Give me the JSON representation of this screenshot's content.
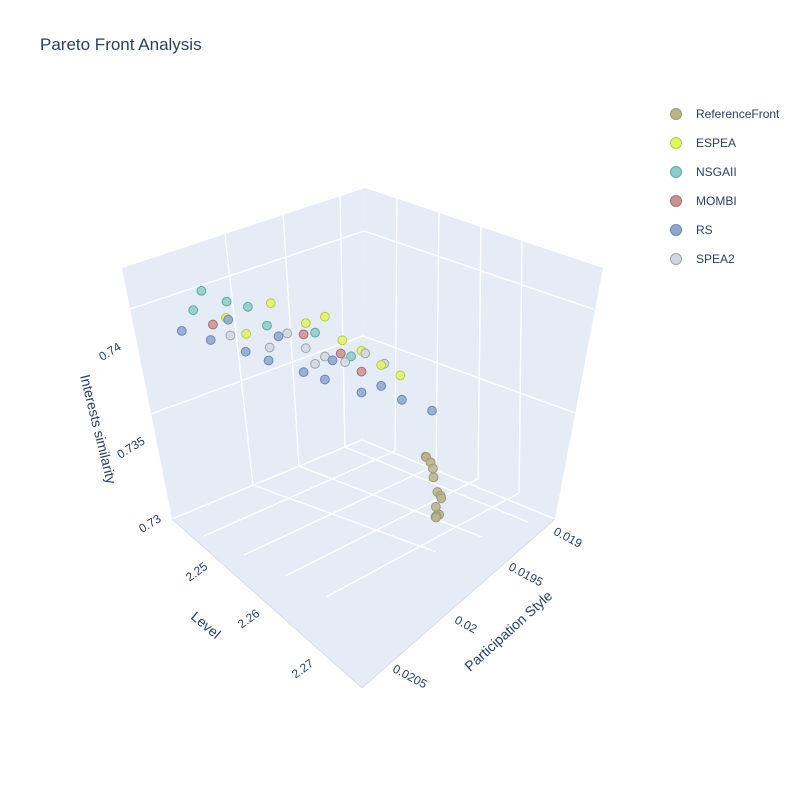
{
  "chart_data": {
    "type": "scatter",
    "subtype": "3d-scatter",
    "title": "Pareto Front Analysis",
    "axes": {
      "x": {
        "label": "Participation Style",
        "range": [
          0.02055,
          0.01895
        ],
        "ticks": [
          "0.019",
          "0.0195",
          "0.02",
          "0.0205"
        ]
      },
      "y": {
        "label": "Level",
        "range": [
          2.24,
          2.275
        ],
        "ticks": [
          "2.25",
          "2.26",
          "2.27"
        ]
      },
      "z": {
        "label": "Interests similarity",
        "range": [
          0.73,
          0.742
        ],
        "ticks": [
          "0.73",
          "0.735",
          "0.74"
        ]
      }
    },
    "legend_position": "top-right",
    "series": [
      {
        "name": "ReferenceFront",
        "color": "#b8b48c",
        "edge": "#9e9a78",
        "points": [
          [
            0.01955,
            2.2505,
            0.7327
          ],
          [
            0.0195,
            2.2515,
            0.7329
          ],
          [
            0.0194,
            2.2525,
            0.7327
          ],
          [
            0.01935,
            2.2535,
            0.7325
          ],
          [
            0.01925,
            2.255,
            0.7322
          ],
          [
            0.0192,
            2.2555,
            0.7322
          ],
          [
            0.01915,
            2.2565,
            0.7323
          ],
          [
            0.01915,
            2.2575,
            0.732
          ],
          [
            0.0191,
            2.258,
            0.7318
          ],
          [
            0.0191,
            2.2585,
            0.7318
          ],
          [
            0.01905,
            2.2598,
            0.732
          ],
          [
            0.019,
            2.2608,
            0.7322
          ],
          [
            0.01945,
            2.2518,
            0.7328
          ]
        ]
      },
      {
        "name": "ESPEA",
        "color": "#dff36b",
        "edge": "#b9c94a",
        "points": [
          [
            0.02035,
            2.2695,
            0.7395
          ],
          [
            0.0201,
            2.2668,
            0.7405
          ],
          [
            0.0199,
            2.2648,
            0.7398
          ],
          [
            0.0197,
            2.2625,
            0.7392
          ],
          [
            0.0196,
            2.2612,
            0.7388
          ],
          [
            0.0195,
            2.2598,
            0.7382
          ],
          [
            0.0198,
            2.2635,
            0.7402
          ],
          [
            0.02025,
            2.268,
            0.7388
          ],
          [
            0.0194,
            2.2585,
            0.7378
          ]
        ]
      },
      {
        "name": "NSGAII",
        "color": "#8ccdc8",
        "edge": "#5fa9a3",
        "points": [
          [
            0.02045,
            2.2718,
            0.7408
          ],
          [
            0.0203,
            2.2705,
            0.7405
          ],
          [
            0.0202,
            2.2688,
            0.7403
          ],
          [
            0.0201,
            2.2675,
            0.7395
          ],
          [
            0.01985,
            2.2642,
            0.7394
          ],
          [
            0.01965,
            2.262,
            0.7385
          ],
          [
            0.0205,
            2.2722,
            0.7398
          ]
        ]
      },
      {
        "name": "MOMBI",
        "color": "#c99293",
        "edge": "#a87071",
        "points": [
          [
            0.0204,
            2.2708,
            0.7392
          ],
          [
            0.0199,
            2.2652,
            0.7393
          ],
          [
            0.0197,
            2.2628,
            0.7386
          ],
          [
            0.0196,
            2.2612,
            0.7378
          ]
        ]
      },
      {
        "name": "RS",
        "color": "#8fa6cf",
        "edge": "#6f88b8",
        "points": [
          [
            0.02055,
            2.2732,
            0.7388
          ],
          [
            0.0204,
            2.2712,
            0.7385
          ],
          [
            0.0202,
            2.2692,
            0.7382
          ],
          [
            0.0201,
            2.2672,
            0.7378
          ],
          [
            0.0199,
            2.2652,
            0.7375
          ],
          [
            0.0198,
            2.2635,
            0.7372
          ],
          [
            0.0196,
            2.2612,
            0.7368
          ],
          [
            0.0195,
            2.2598,
            0.7372
          ],
          [
            0.0194,
            2.2582,
            0.7366
          ],
          [
            0.01925,
            2.256,
            0.7362
          ],
          [
            0.0203,
            2.2702,
            0.7396
          ],
          [
            0.02005,
            2.2665,
            0.739
          ],
          [
            0.01975,
            2.2632,
            0.7382
          ]
        ]
      },
      {
        "name": "SPEA2",
        "color": "#d3d8df",
        "edge": "#9ea5af",
        "points": [
          [
            0.0203,
            2.2698,
            0.7388
          ],
          [
            0.0201,
            2.267,
            0.7384
          ],
          [
            0.0199,
            2.2648,
            0.7386
          ],
          [
            0.0198,
            2.2635,
            0.7383
          ],
          [
            0.0197,
            2.262,
            0.7381
          ],
          [
            0.0196,
            2.2605,
            0.7386
          ],
          [
            0.0195,
            2.2592,
            0.7382
          ],
          [
            0.02,
            2.266,
            0.7392
          ],
          [
            0.01985,
            2.2642,
            0.7379
          ]
        ]
      }
    ]
  }
}
